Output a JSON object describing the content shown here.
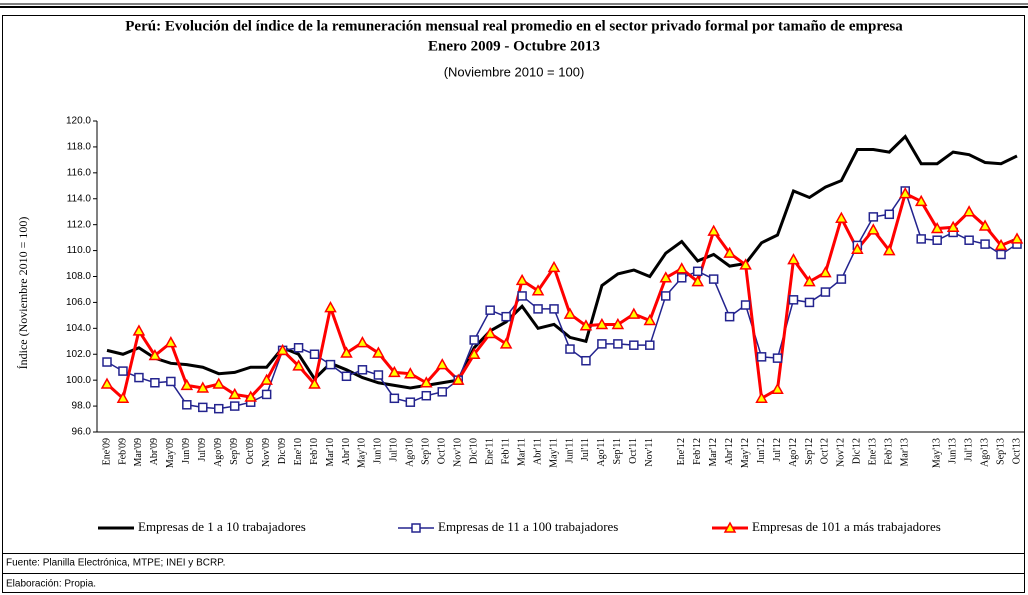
{
  "chart_data": {
    "type": "line",
    "title": "Perú: Evolución del índice de la remuneración mensual real promedio en el sector privado formal por tamaño de empresa",
    "period": "Enero 2009 - Octubre 2013",
    "subtitle": "(Noviembre 2010 = 100)",
    "ylabel": "Índice (Noviembre 2010 = 100)",
    "source": "Fuente: Planilla Electrónica, MTPE; INEI y BCRP.",
    "credits": "Elaboración: Propia.",
    "ylim": [
      96,
      120
    ],
    "yticks": [
      {
        "value": 96,
        "label": "96.0"
      },
      {
        "value": 98,
        "label": "98.0"
      },
      {
        "value": 100,
        "label": "100.0"
      },
      {
        "value": 102,
        "label": "102.0"
      },
      {
        "value": 104,
        "label": "104.0"
      },
      {
        "value": 106,
        "label": "106.0"
      },
      {
        "value": 108,
        "label": "108.0"
      },
      {
        "value": 110,
        "label": "110.0"
      },
      {
        "value": 112,
        "label": "112.0"
      },
      {
        "value": 114,
        "label": "114.0"
      },
      {
        "value": 116,
        "label": "116.0"
      },
      {
        "value": 118,
        "label": "118.0"
      },
      {
        "value": 120,
        "label": "120.0"
      }
    ],
    "grid": false,
    "legend": "bottom",
    "categories": [
      "Ene'09",
      "Feb'09",
      "Mar'09",
      "Abr'09",
      "May'09",
      "Jun'09",
      "Jul'09",
      "Ago'09",
      "Sep'09",
      "Oct'09",
      "Nov'09",
      "Dic'09",
      "Ene'10",
      "Feb'10",
      "Mar'10",
      "Abr'10",
      "May'10",
      "Jun'10",
      "Jul'10",
      "Ago'10",
      "Sep'10",
      "Oct'10",
      "Nov'10",
      "Dic'10",
      "Ene'11",
      "Feb'11",
      "Mar'11",
      "Abr'11",
      "May'11",
      "Jun'11",
      "Jul'11",
      "Ago'11",
      "Sep'11",
      "Oct'11",
      "Nov'11",
      null,
      "Ene'12",
      "Feb'12",
      "Mar'12",
      "Abr'12",
      "May'12",
      "Jun'12",
      "Jul'12",
      "Ago'12",
      "Sep'12",
      "Oct'12",
      "Nov'12",
      "Dic'12",
      "Ene'13",
      "Feb'13",
      "Mar'13",
      null,
      "May'13",
      "Jun'13",
      "Jul'13",
      "Ago'13",
      "Sep'13",
      "Oct'13"
    ],
    "series": [
      {
        "name": "Empresas de 1 a 10 trabajadores",
        "color": "#000000",
        "marker": "none",
        "values": [
          102.3,
          102.0,
          102.5,
          101.7,
          101.3,
          101.2,
          101.0,
          100.5,
          100.6,
          101.0,
          101.0,
          102.5,
          102.0,
          100.1,
          101.3,
          100.8,
          100.2,
          99.8,
          99.6,
          99.4,
          99.6,
          99.8,
          100.0,
          102.5,
          103.8,
          104.5,
          105.7,
          104.0,
          104.3,
          103.3,
          103.0,
          107.3,
          108.2,
          108.5,
          108.0,
          109.8,
          110.7,
          109.2,
          109.7,
          108.8,
          109.0,
          110.6,
          111.2,
          114.6,
          114.1,
          114.9,
          115.4,
          117.8,
          117.8,
          117.6,
          118.8,
          116.7,
          116.7,
          117.6,
          117.4,
          116.8,
          116.7,
          117.3
        ]
      },
      {
        "name": "Empresas de 11 a 100 trabajadores",
        "color": "#23238e",
        "marker": "square",
        "values": [
          101.4,
          100.7,
          100.2,
          99.8,
          99.9,
          98.1,
          97.9,
          97.8,
          98.0,
          98.3,
          98.9,
          102.3,
          102.5,
          102.0,
          101.2,
          100.3,
          100.8,
          100.4,
          98.6,
          98.3,
          98.8,
          99.1,
          100.0,
          103.1,
          105.4,
          104.9,
          106.5,
          105.5,
          105.5,
          102.4,
          101.5,
          102.8,
          102.8,
          102.7,
          102.7,
          106.5,
          107.9,
          108.4,
          107.8,
          104.9,
          105.8,
          101.8,
          101.7,
          106.2,
          106.0,
          106.8,
          107.8,
          110.4,
          112.6,
          112.8,
          114.6,
          110.9,
          110.8,
          111.4,
          110.8,
          110.5,
          109.7,
          110.5
        ]
      },
      {
        "name": "Empresas de 101 a más trabajadores",
        "color": "#ff0000",
        "marker": "triangle",
        "values": [
          99.7,
          98.6,
          103.8,
          101.9,
          102.9,
          99.6,
          99.4,
          99.7,
          98.9,
          98.7,
          100.0,
          102.3,
          101.1,
          99.7,
          105.6,
          102.1,
          102.9,
          102.1,
          100.6,
          100.5,
          99.8,
          101.2,
          100.0,
          102.0,
          103.6,
          102.8,
          107.7,
          106.9,
          108.7,
          105.1,
          104.2,
          104.3,
          104.3,
          105.1,
          104.6,
          107.9,
          108.6,
          107.6,
          111.5,
          109.8,
          108.9,
          98.6,
          99.3,
          109.3,
          107.6,
          108.3,
          112.5,
          110.1,
          111.6,
          110.0,
          114.4,
          113.8,
          111.7,
          111.8,
          113.0,
          111.9,
          110.4,
          110.9
        ]
      }
    ]
  }
}
